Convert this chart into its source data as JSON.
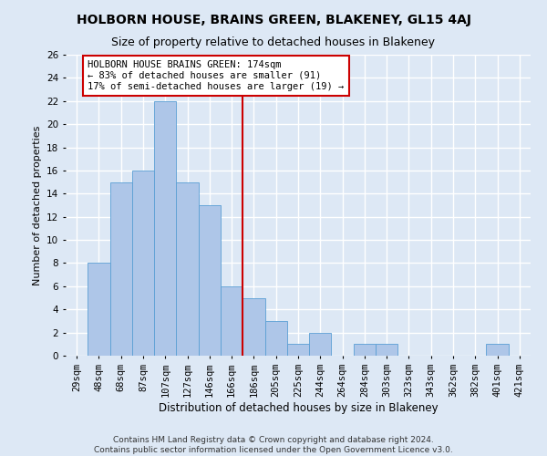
{
  "title": "HOLBORN HOUSE, BRAINS GREEN, BLAKENEY, GL15 4AJ",
  "subtitle": "Size of property relative to detached houses in Blakeney",
  "xlabel": "Distribution of detached houses by size in Blakeney",
  "ylabel": "Number of detached properties",
  "categories": [
    "29sqm",
    "48sqm",
    "68sqm",
    "87sqm",
    "107sqm",
    "127sqm",
    "146sqm",
    "166sqm",
    "186sqm",
    "205sqm",
    "225sqm",
    "244sqm",
    "264sqm",
    "284sqm",
    "303sqm",
    "323sqm",
    "343sqm",
    "362sqm",
    "382sqm",
    "401sqm",
    "421sqm"
  ],
  "values": [
    0,
    8,
    15,
    16,
    22,
    15,
    13,
    6,
    5,
    3,
    1,
    2,
    0,
    1,
    1,
    0,
    0,
    0,
    0,
    1,
    0
  ],
  "bar_color": "#aec6e8",
  "bar_edge_color": "#5a9fd4",
  "vline_x": 7.5,
  "vline_color": "#cc0000",
  "annotation_text": "HOLBORN HOUSE BRAINS GREEN: 174sqm\n← 83% of detached houses are smaller (91)\n17% of semi-detached houses are larger (19) →",
  "annotation_box_color": "#ffffff",
  "annotation_box_edge_color": "#cc0000",
  "ylim": [
    0,
    26
  ],
  "yticks": [
    0,
    2,
    4,
    6,
    8,
    10,
    12,
    14,
    16,
    18,
    20,
    22,
    24,
    26
  ],
  "background_color": "#dde8f5",
  "grid_color": "#ffffff",
  "footer_text": "Contains HM Land Registry data © Crown copyright and database right 2024.\nContains public sector information licensed under the Open Government Licence v3.0.",
  "title_fontsize": 10,
  "subtitle_fontsize": 9,
  "xlabel_fontsize": 8.5,
  "ylabel_fontsize": 8,
  "tick_fontsize": 7.5,
  "annotation_fontsize": 7.5,
  "footer_fontsize": 6.5
}
